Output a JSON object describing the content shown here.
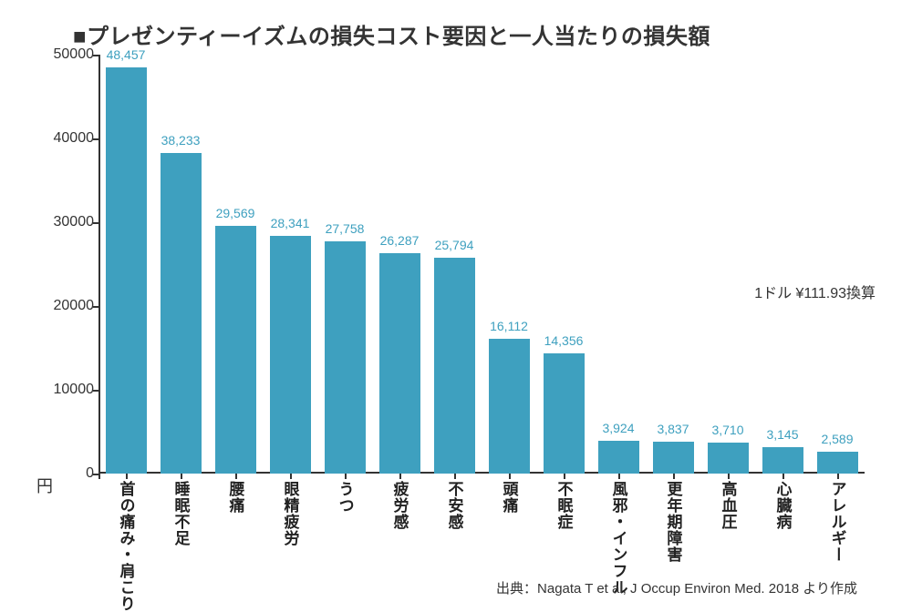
{
  "title": "■プレゼンティーイズムの損失コスト要因と一人当たりの損失額",
  "chart": {
    "type": "bar",
    "bar_color": "#3ea0bf",
    "background_color": "#ffffff",
    "axis_color": "#333333",
    "label_color": "#3ea0bf",
    "category_label_color": "#222222",
    "ylim": [
      0,
      50000
    ],
    "ytick_step": 10000,
    "yticks": [
      "0",
      "10000",
      "20000",
      "30000",
      "40000",
      "50000"
    ],
    "y_unit_label": "円",
    "bar_width_ratio": 0.75,
    "categories": [
      "首の痛み・肩こり",
      "睡眠不足",
      "腰痛",
      "眼精疲労",
      "うつ",
      "疲労感",
      "不安感",
      "頭痛",
      "不眠症",
      "風邪・インフル",
      "更年期障害",
      "高血圧",
      "心臓病",
      "アレルギー"
    ],
    "values": [
      48457,
      38233,
      29569,
      28341,
      27758,
      26287,
      25794,
      16112,
      14356,
      3924,
      3837,
      3710,
      3145,
      2589
    ],
    "value_labels": [
      "48,457",
      "38,233",
      "29,569",
      "28,341",
      "27,758",
      "26,287",
      "25,794",
      "16,112",
      "14,356",
      "3,924",
      "3,837",
      "3,710",
      "3,145",
      "2,589"
    ],
    "annotation": "1ドル ¥111.93換算",
    "source": "出典：Nagata T et al, J Occup Environ Med. 2018 より作成",
    "title_fontsize": 24,
    "value_label_fontsize": 14,
    "category_label_fontsize": 17,
    "tick_fontsize": 16
  }
}
